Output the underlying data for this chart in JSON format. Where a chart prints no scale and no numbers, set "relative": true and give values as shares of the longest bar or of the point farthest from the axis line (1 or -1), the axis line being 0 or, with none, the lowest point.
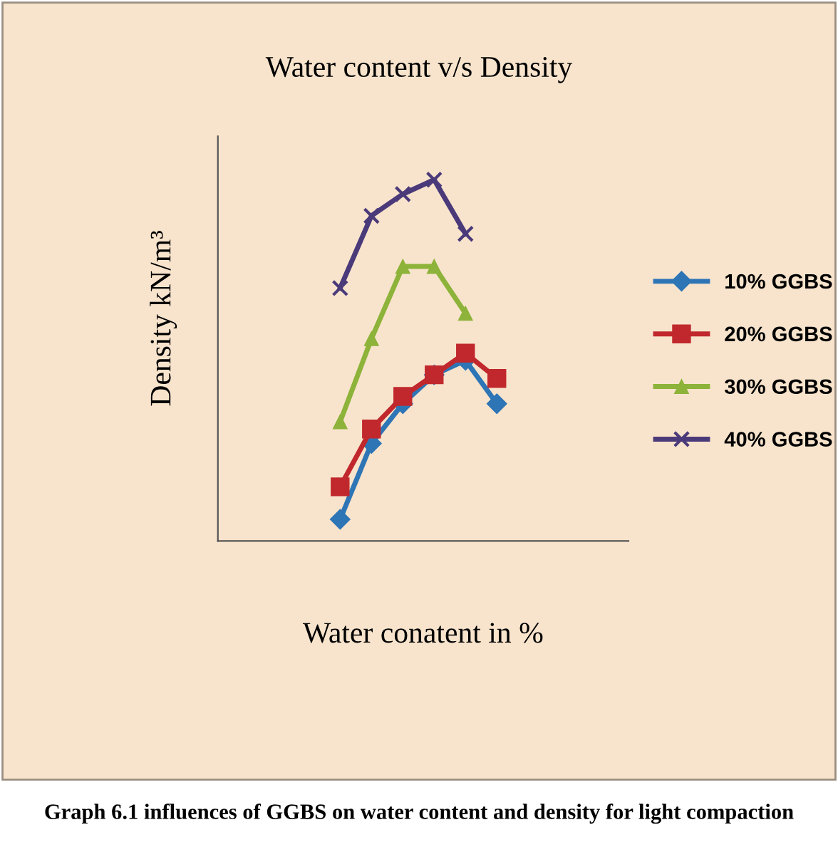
{
  "chart_data": {
    "type": "line",
    "title": "Water content v/s Density",
    "xlabel": "Water conatent in %",
    "ylabel": "Density kN/m³",
    "relative": true,
    "categories": [
      null,
      null,
      null,
      null,
      null,
      null
    ],
    "legend": "right",
    "line_style": "solid",
    "series": [
      {
        "name": "10% GGBS",
        "color": "#2e75b6",
        "marker": "diamond",
        "values": [
          0.06,
          0.27,
          0.38,
          0.46,
          0.5,
          0.38
        ]
      },
      {
        "name": "20% GGBS",
        "color": "#c0282d",
        "marker": "square",
        "values": [
          0.15,
          0.31,
          0.4,
          0.46,
          0.52,
          0.45
        ]
      },
      {
        "name": "30% GGBS",
        "color": "#8db33a",
        "marker": "triangle",
        "values": [
          0.33,
          0.56,
          0.76,
          0.76,
          0.63,
          null
        ]
      },
      {
        "name": "40% GGBS",
        "color": "#4b3a7a",
        "marker": "cross",
        "values": [
          0.7,
          0.9,
          0.96,
          1.0,
          0.85,
          null
        ]
      }
    ],
    "annotations": [
      "Graph 6.1 influences of GGBS on water content and density for light compaction"
    ]
  }
}
